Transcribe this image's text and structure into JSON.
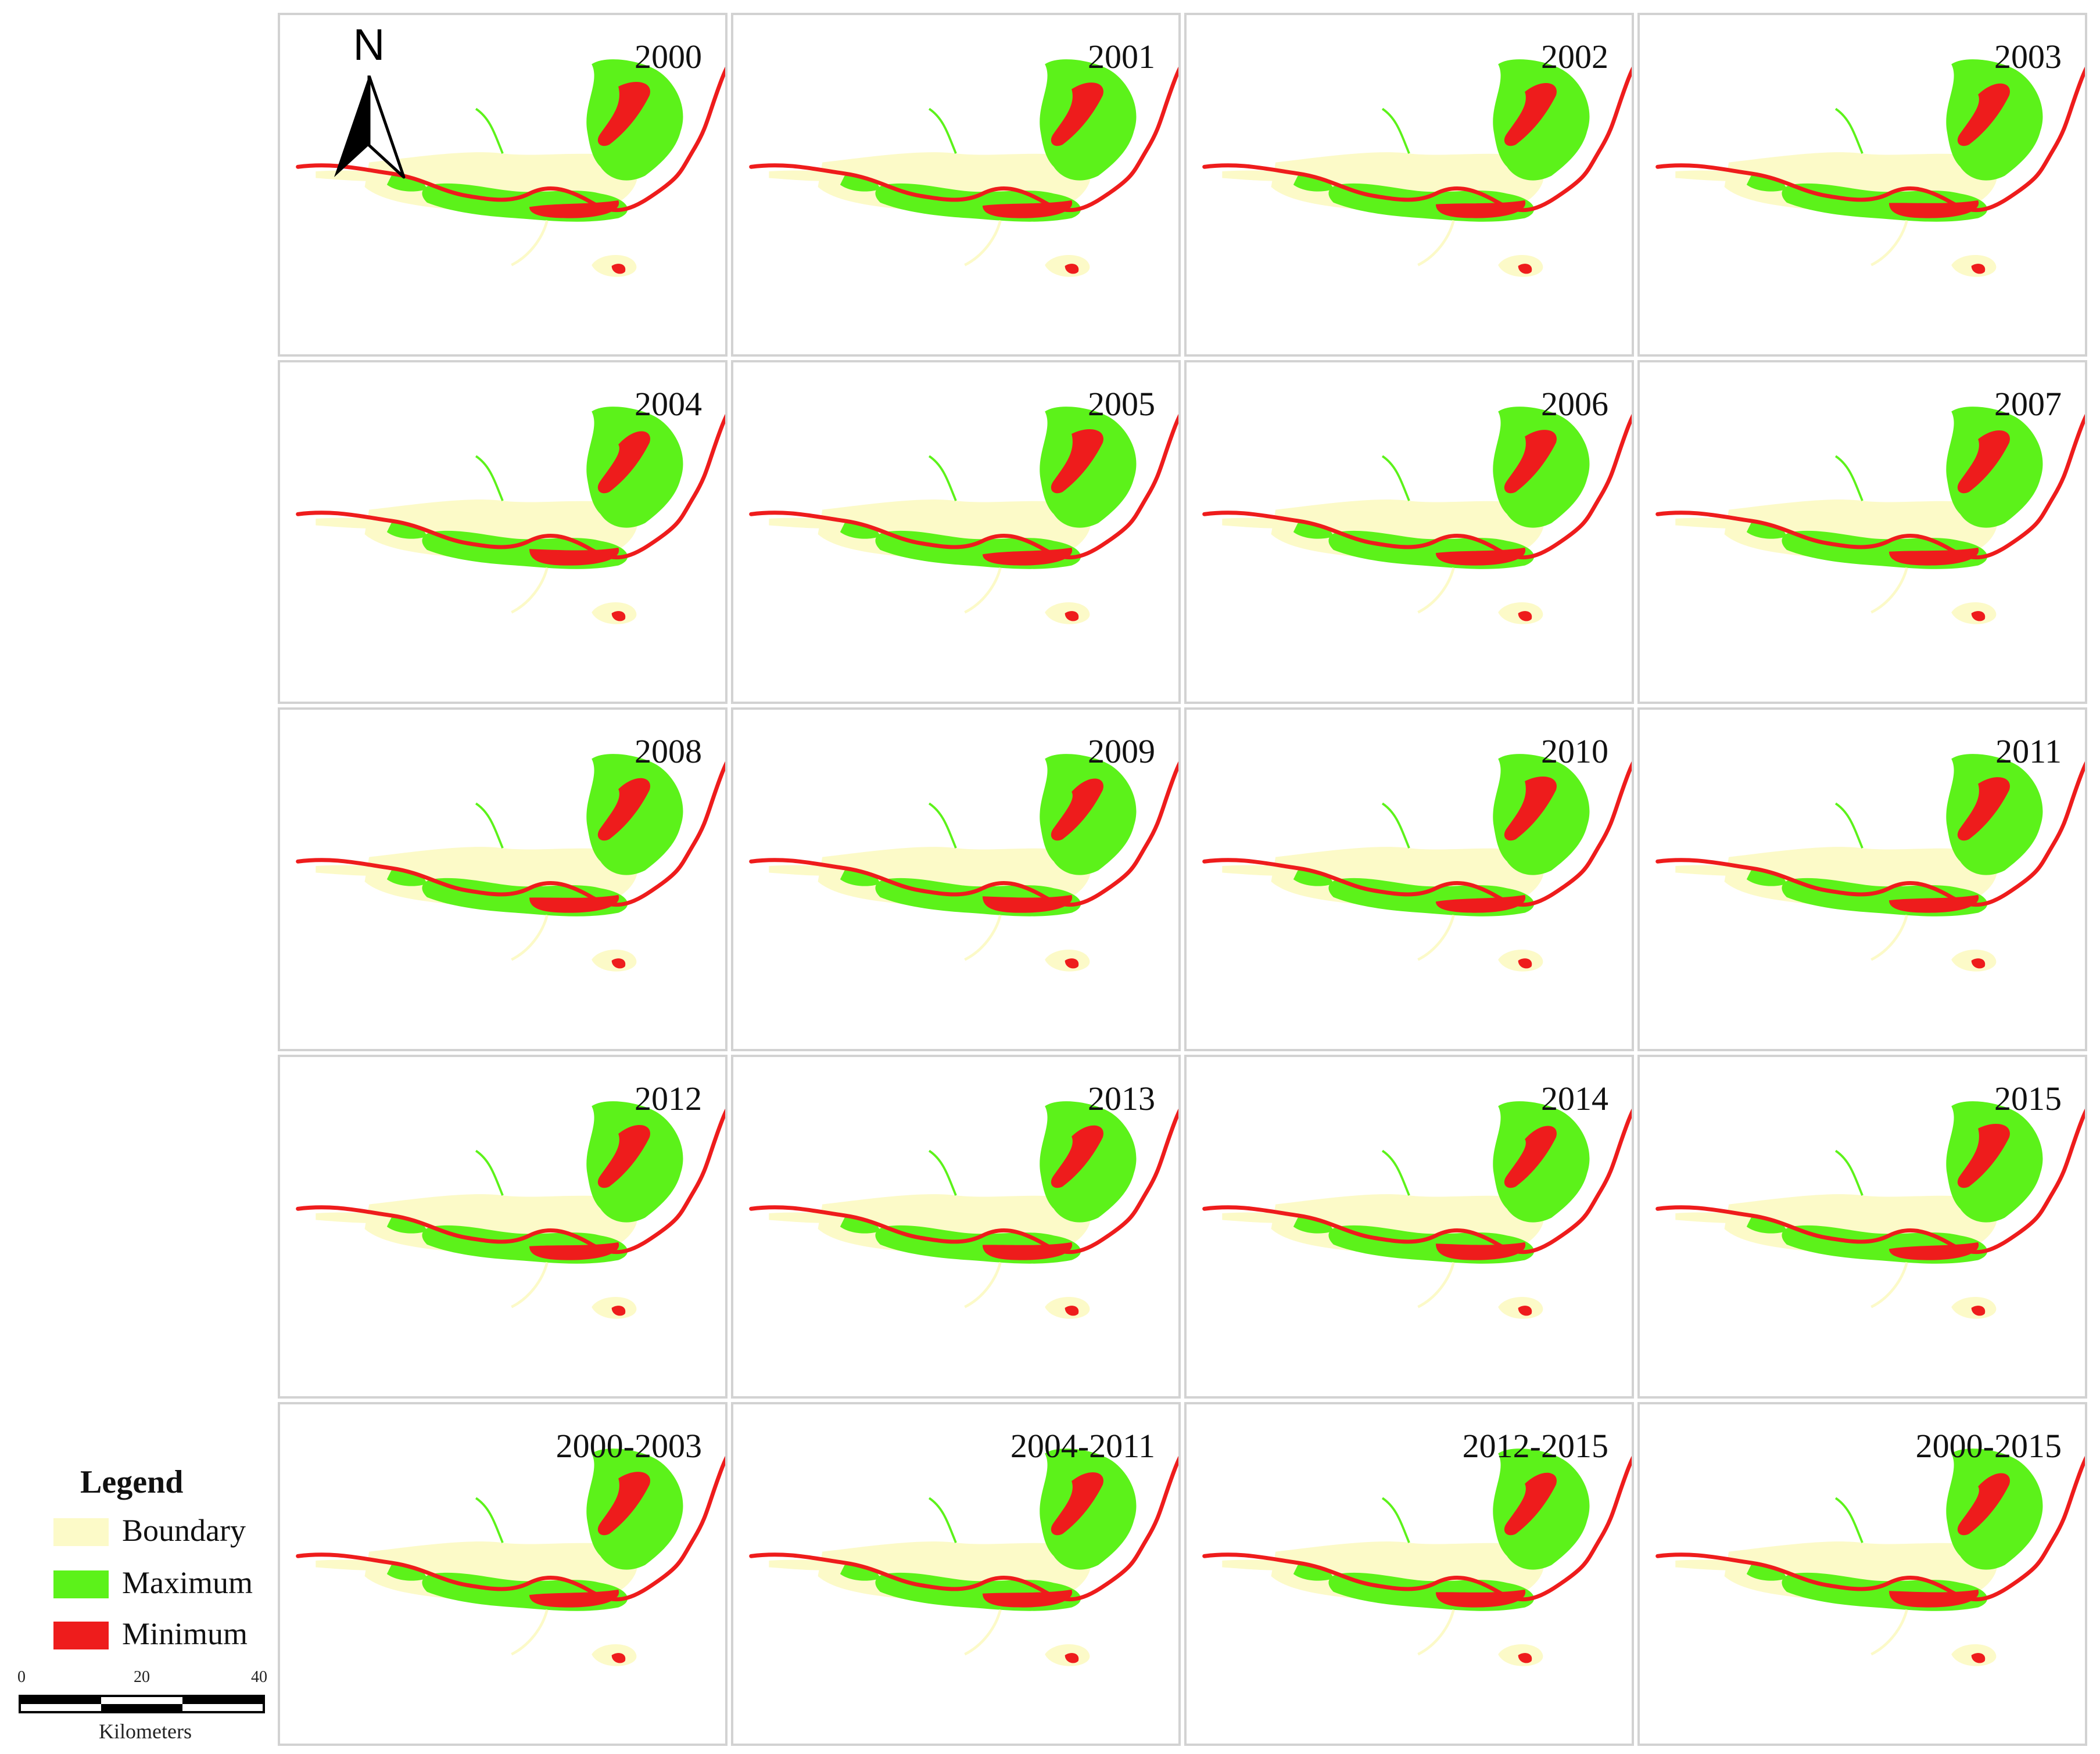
{
  "map": {
    "type": "small-multiples",
    "columns": 4,
    "rows": 5,
    "panels": [
      "2000",
      "2001",
      "2002",
      "2003",
      "2004",
      "2005",
      "2006",
      "2007",
      "2008",
      "2009",
      "2010",
      "2011",
      "2012",
      "2013",
      "2014",
      "2015",
      "2000-2003",
      "2004-2011",
      "2012-2015",
      "2000-2015"
    ]
  },
  "north_arrow": {
    "label": "N"
  },
  "legend": {
    "title": "Legend",
    "items": [
      {
        "label": "Boundary",
        "color": "#fcfac8"
      },
      {
        "label": "Maximum",
        "color": "#5cf21a"
      },
      {
        "label": "Minimum",
        "color": "#ee1c1c"
      }
    ]
  },
  "scale_bar": {
    "ticks": [
      "0",
      "20",
      "40"
    ],
    "unit": "Kilometers"
  }
}
